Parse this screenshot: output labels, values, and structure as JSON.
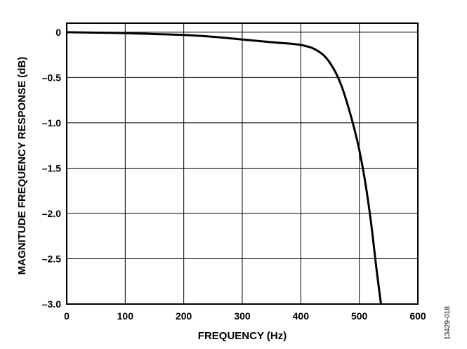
{
  "figure_id": "13429-018",
  "chart_data": {
    "type": "line",
    "title": "",
    "xlabel": "FREQUENCY (Hz)",
    "ylabel": "MAGNITUDE FREQUENCY RESPONSE (dB)",
    "xlim": [
      0,
      600
    ],
    "ylim": [
      -3.0,
      0.1
    ],
    "grid": true,
    "legend": "none",
    "x_tick_values": [
      0,
      100,
      200,
      300,
      400,
      500,
      600
    ],
    "x_tick_labels": [
      "0",
      "100",
      "200",
      "300",
      "400",
      "500",
      "600"
    ],
    "y_tick_values": [
      0,
      -0.5,
      -1.0,
      -1.5,
      -2.0,
      -2.5,
      -3.0
    ],
    "y_tick_labels": [
      "0",
      "–0.5",
      "–1.0",
      "–1.5",
      "–2.0",
      "–2.5",
      "–3.0"
    ],
    "series": [
      {
        "color": "#000000",
        "x": [
          0,
          50,
          100,
          150,
          200,
          250,
          300,
          350,
          380,
          400,
          410,
          420,
          430,
          440,
          450,
          460,
          470,
          480,
          490,
          500,
          510,
          520,
          530,
          537
        ],
        "y": [
          0,
          -0.005,
          -0.01,
          -0.02,
          -0.03,
          -0.05,
          -0.08,
          -0.11,
          -0.125,
          -0.14,
          -0.155,
          -0.175,
          -0.21,
          -0.26,
          -0.34,
          -0.45,
          -0.6,
          -0.8,
          -1.03,
          -1.3,
          -1.65,
          -2.1,
          -2.65,
          -3.0
        ]
      }
    ]
  }
}
